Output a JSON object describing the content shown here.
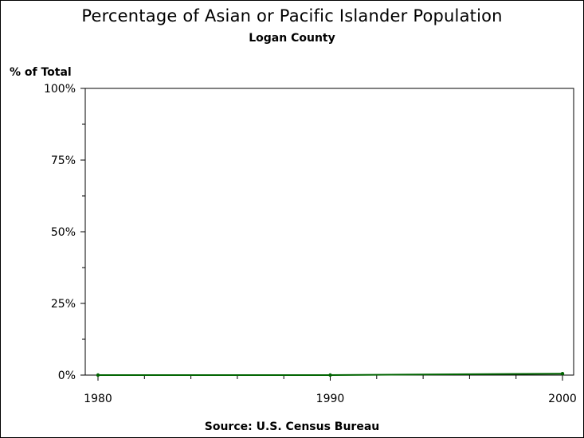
{
  "title": "Percentage of Asian or Pacific Islander Population",
  "subtitle": "Logan County",
  "y_axis_title": "% of Total",
  "footnote": "Source: U.S. Census Bureau",
  "colors": {
    "series": "#006400",
    "axis": "#000000"
  },
  "chart_data": {
    "type": "line",
    "title": "Percentage of Asian or Pacific Islander Population",
    "subtitle": "Logan County",
    "ylabel": "% of Total",
    "xlabel": "",
    "x": [
      1980,
      1990,
      2000
    ],
    "series": [
      {
        "values": [
          0.0,
          0.0,
          0.5
        ]
      }
    ],
    "xlim": [
      1980,
      2000
    ],
    "ylim": [
      0,
      100
    ],
    "x_ticks": [
      "1980",
      "1990",
      "2000"
    ],
    "y_ticks": [
      "0%",
      "25%",
      "50%",
      "75%",
      "100%"
    ],
    "y_tick_values": [
      0,
      25,
      50,
      75,
      100
    ],
    "grid": false,
    "legend": "none"
  }
}
